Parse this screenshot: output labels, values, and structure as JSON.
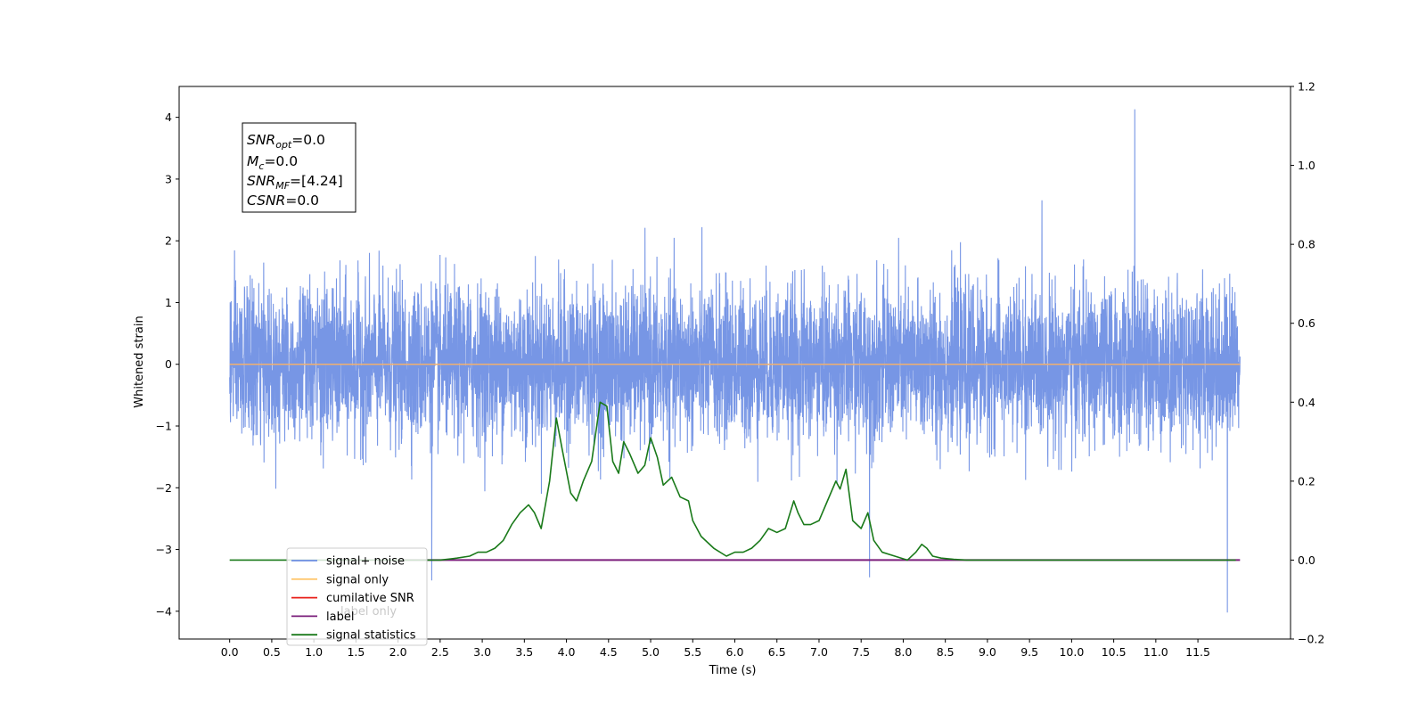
{
  "chart_data": {
    "type": "line",
    "xlabel": "Time (s)",
    "ylabel": "Whitened strain",
    "ylabel_right": "",
    "xlim": [
      -0.6,
      12.6
    ],
    "ylim": [
      -4.45,
      4.5
    ],
    "ylim_right": [
      -0.2,
      1.2
    ],
    "x_ticks": [
      "0.0",
      "0.5",
      "1.0",
      "1.5",
      "2.0",
      "2.5",
      "3.0",
      "3.5",
      "4.0",
      "4.5",
      "5.0",
      "5.5",
      "6.0",
      "6.5",
      "7.0",
      "7.5",
      "8.0",
      "8.5",
      "9.0",
      "9.5",
      "10.0",
      "10.5",
      "11.0",
      "11.5"
    ],
    "y_ticks": [
      "−4",
      "−3",
      "−2",
      "−1",
      "0",
      "1",
      "2",
      "3",
      "4"
    ],
    "y_ticks_right": [
      "−0.2",
      "0.0",
      "0.2",
      "0.4",
      "0.6",
      "0.8",
      "1.0",
      "1.2"
    ],
    "legend_position": "lower-left",
    "legend": [
      {
        "label": "signal+ noise",
        "color": "#6b8de3"
      },
      {
        "label": "signal only",
        "color": "#ffc870"
      },
      {
        "label": "cumilative SNR",
        "color": "#e8211a"
      },
      {
        "label": "label",
        "color": "#7b1f7b"
      },
      {
        "label": "signal statistics",
        "color": "#1a7a1a"
      }
    ],
    "legend_hidden_text": "label only",
    "stats_box": {
      "snr_opt": "=0.0",
      "mc": "=0.0",
      "snr_mf": "=[4.24]",
      "csnr": "=0.0"
    },
    "series": [
      {
        "name": "signal+ noise",
        "axis": "left",
        "color": "#6b8de3",
        "kind": "noise",
        "x_range": [
          0.0,
          12.0
        ],
        "sigma": 0.62,
        "envelope_upper_max": 4.13,
        "envelope_lower_min": -4.02,
        "notable_peaks": [
          {
            "x": 10.75,
            "y": 4.13
          },
          {
            "x": 11.85,
            "y": -4.02
          },
          {
            "x": 2.4,
            "y": -3.5
          },
          {
            "x": 7.6,
            "y": -3.45
          }
        ]
      },
      {
        "name": "signal only",
        "axis": "left",
        "color": "#f0b070",
        "x": [
          0.0,
          12.0
        ],
        "y": [
          0.0,
          0.0
        ]
      },
      {
        "name": "label",
        "axis": "right",
        "color": "#7b1f7b",
        "x": [
          2.0,
          12.0
        ],
        "y": [
          0.0,
          0.0
        ]
      },
      {
        "name": "signal statistics",
        "axis": "right",
        "color": "#1a7a1a",
        "x": [
          0.0,
          2.5,
          2.7,
          2.85,
          2.95,
          3.05,
          3.15,
          3.25,
          3.35,
          3.45,
          3.55,
          3.62,
          3.7,
          3.8,
          3.88,
          3.95,
          4.05,
          4.12,
          4.2,
          4.3,
          4.4,
          4.48,
          4.55,
          4.62,
          4.68,
          4.75,
          4.85,
          4.93,
          5.0,
          5.08,
          5.15,
          5.25,
          5.35,
          5.45,
          5.5,
          5.6,
          5.75,
          5.9,
          6.0,
          6.1,
          6.2,
          6.3,
          6.4,
          6.5,
          6.6,
          6.7,
          6.75,
          6.82,
          6.9,
          7.0,
          7.1,
          7.2,
          7.25,
          7.32,
          7.4,
          7.5,
          7.58,
          7.65,
          7.75,
          7.9,
          8.05,
          8.15,
          8.22,
          8.28,
          8.35,
          8.45,
          8.6,
          8.75,
          8.9,
          9.5,
          10.0,
          10.5,
          11.0,
          11.5,
          11.95
        ],
        "y": [
          0.0,
          0.0,
          0.005,
          0.01,
          0.02,
          0.02,
          0.03,
          0.05,
          0.09,
          0.12,
          0.14,
          0.12,
          0.08,
          0.2,
          0.36,
          0.28,
          0.17,
          0.15,
          0.2,
          0.25,
          0.4,
          0.39,
          0.25,
          0.22,
          0.3,
          0.27,
          0.22,
          0.24,
          0.31,
          0.26,
          0.19,
          0.21,
          0.16,
          0.15,
          0.1,
          0.06,
          0.03,
          0.01,
          0.02,
          0.02,
          0.03,
          0.05,
          0.08,
          0.07,
          0.08,
          0.15,
          0.12,
          0.09,
          0.09,
          0.1,
          0.15,
          0.2,
          0.18,
          0.23,
          0.1,
          0.08,
          0.12,
          0.05,
          0.02,
          0.01,
          0.0,
          0.02,
          0.04,
          0.03,
          0.01,
          0.005,
          0.002,
          0.0,
          0.0,
          0.0,
          0.0,
          0.0,
          0.0,
          0.0,
          0.0
        ]
      }
    ]
  }
}
